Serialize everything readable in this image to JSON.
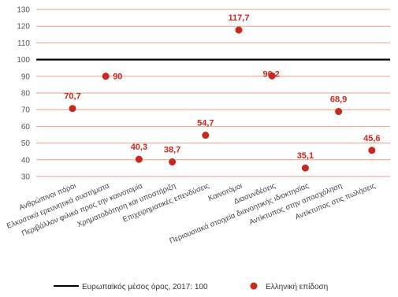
{
  "chart_data": {
    "type": "scatter",
    "categories": [
      "Ανθρώπινοι πόροι",
      "Ελκυστικά ερευνητικά συστήματα",
      "Περιβάλλον φιλικό προς την καινοτομία",
      "Χρηματοδότηση και υποστήριξη",
      "Επιχειρηματικές επενδύσεις",
      "Καινοτόμοι",
      "Διασυνδέσεις",
      "Περιουσιακά στοιχεία διανοητικής ιδιοκτησίας",
      "Αντίκτυπος στην απασχόληση",
      "Αντίκτυπος στις πωλήσεις"
    ],
    "series": [
      {
        "name": "Ελληνική επίδοση",
        "values": [
          70.7,
          90,
          40.3,
          38.7,
          54.7,
          117.7,
          90.2,
          35.1,
          68.9,
          45.6
        ],
        "labels": [
          "70,7",
          "90",
          "40,3",
          "38,7",
          "54,7",
          "117,7",
          "90,2",
          "35,1",
          "68,9",
          "45,6"
        ]
      }
    ],
    "reference_line": {
      "name": "Ευρωπαϊκός μέσος όρος, 2017: 100",
      "value": 100
    },
    "yticks": [
      "30",
      "40",
      "50",
      "60",
      "70",
      "80",
      "90",
      "100",
      "110",
      "120",
      "130"
    ],
    "ylim": [
      30,
      130
    ],
    "grid": true,
    "legend": {
      "position": "bottom",
      "line_label": "Ευρωπαϊκός μέσος όρος, 2017: 100",
      "marker_label": "Ελληνική επίδοση"
    },
    "colors": {
      "marker": "#c8281e",
      "grid": "#e8a08a",
      "reference": "#000000",
      "label": "#c8281e"
    }
  }
}
